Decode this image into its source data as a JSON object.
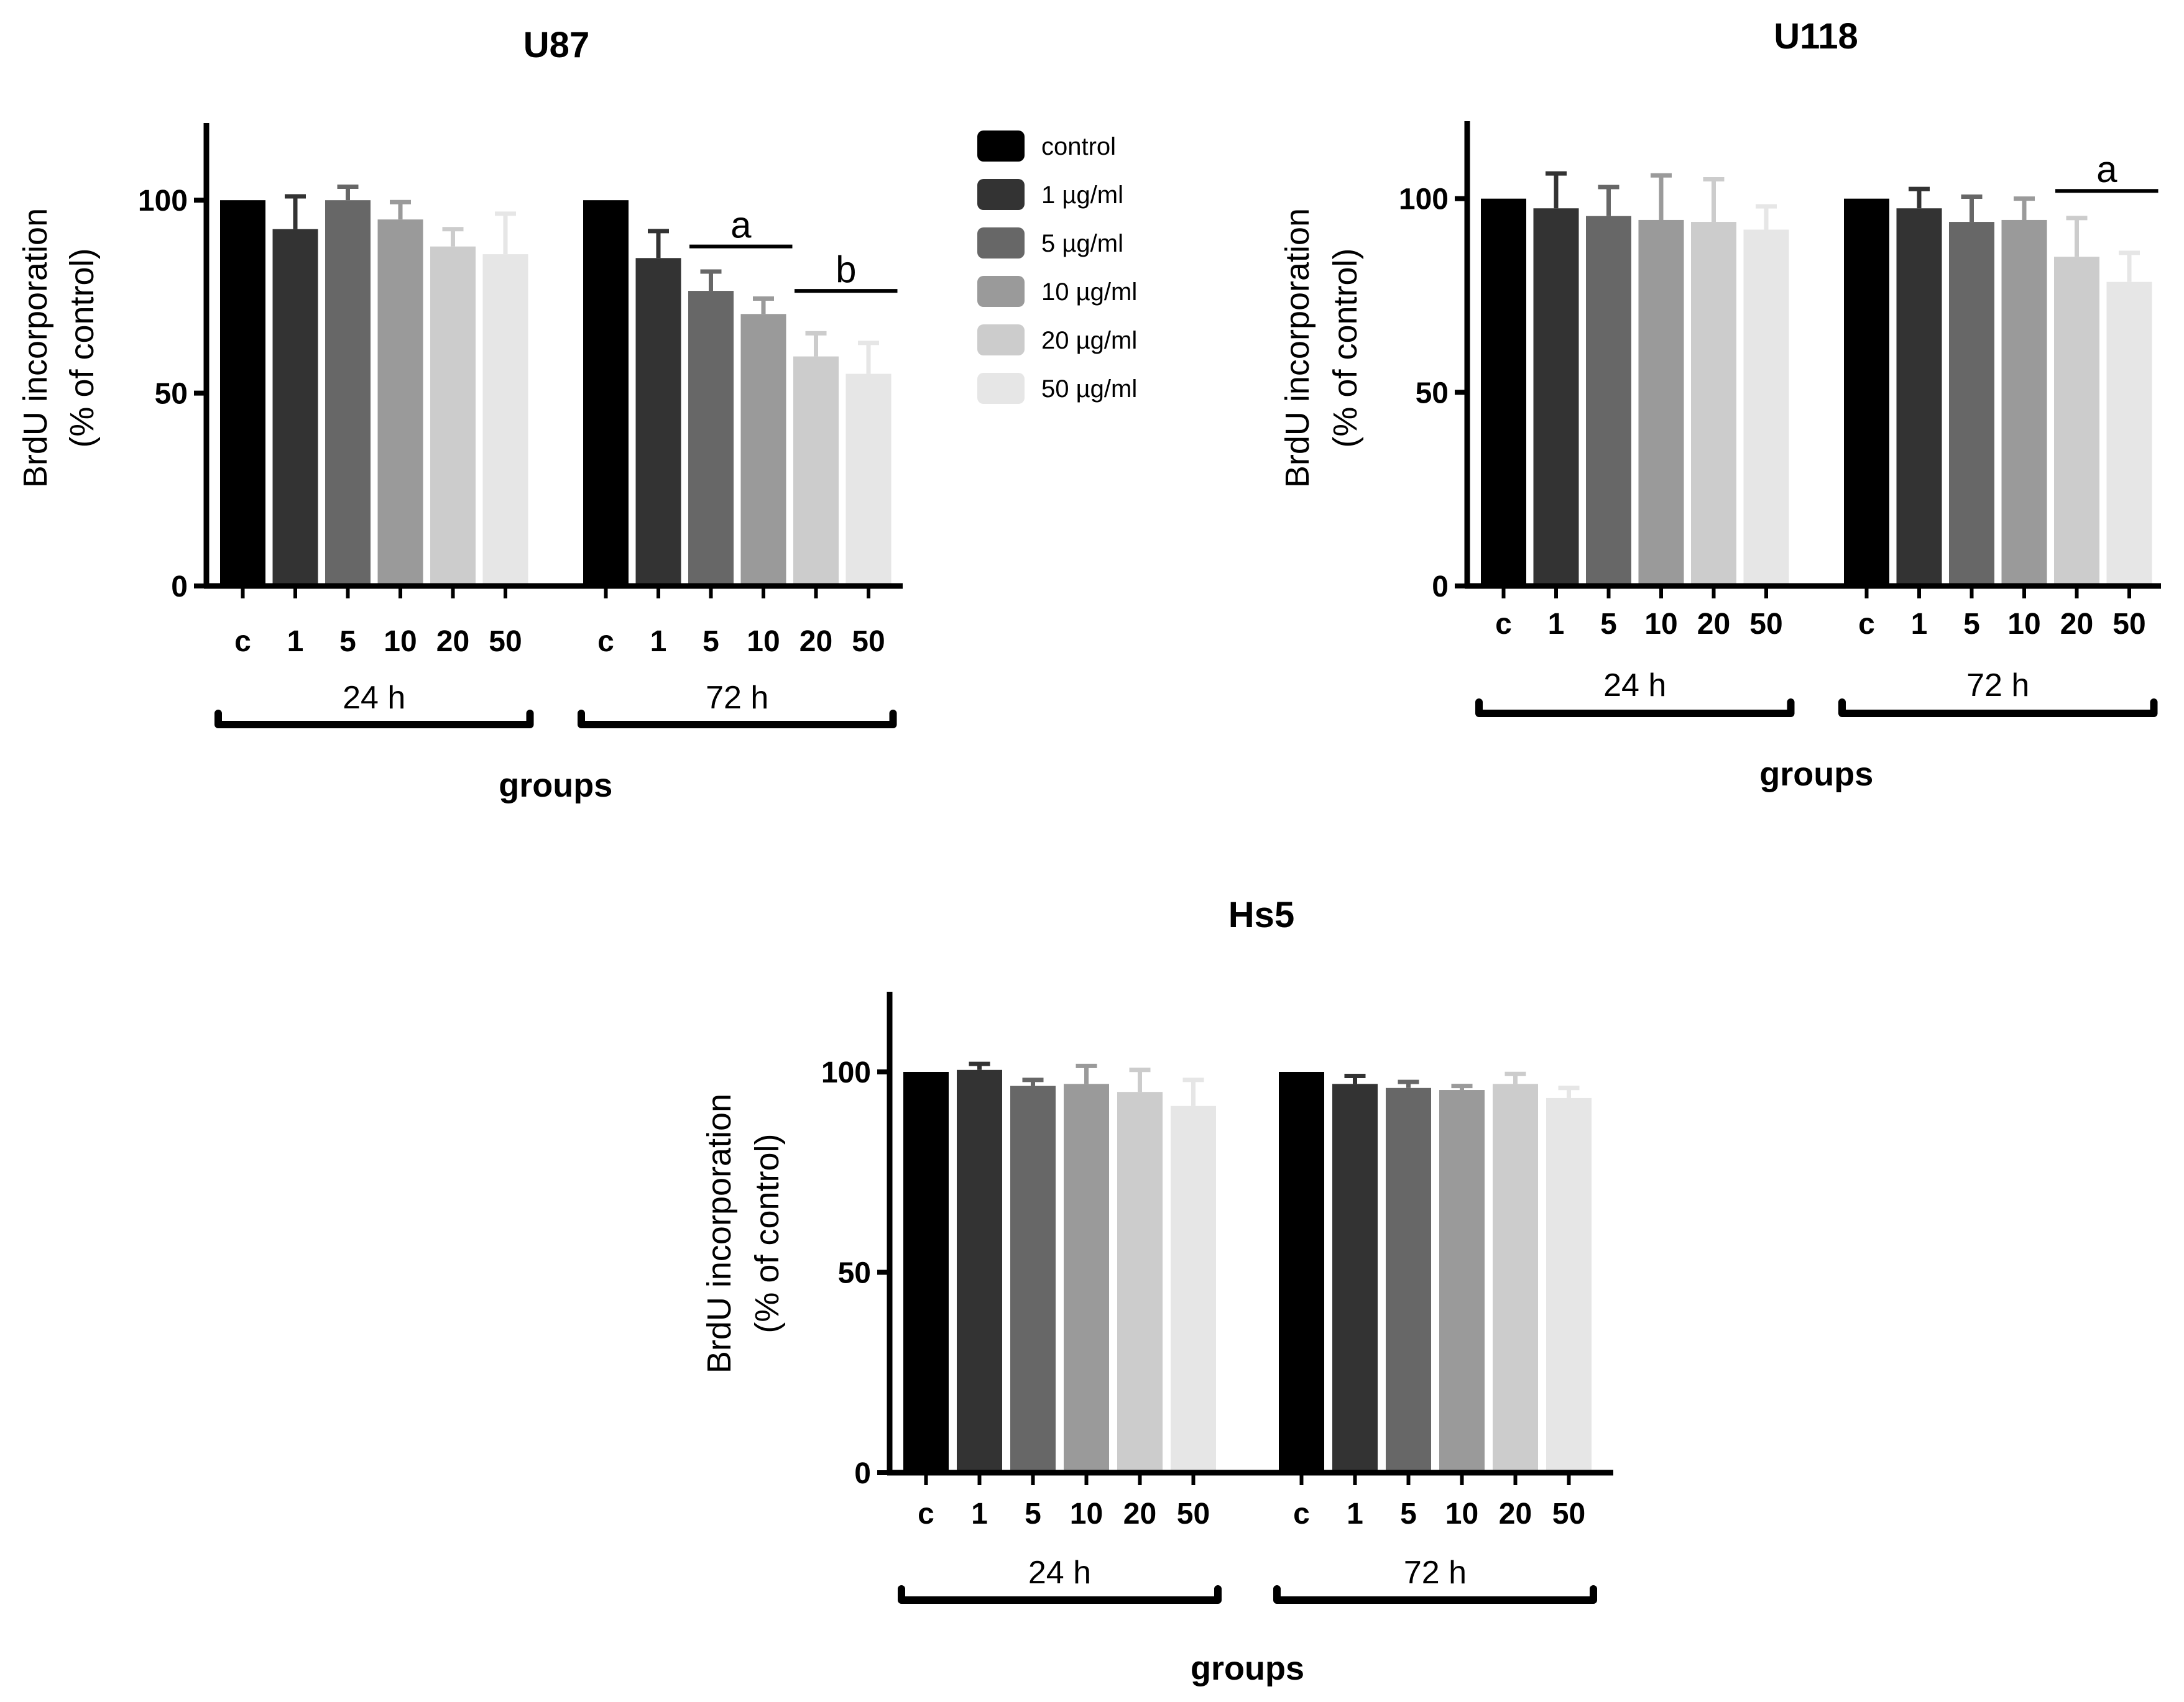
{
  "legend": {
    "items": [
      {
        "label": "control",
        "color": "#000000"
      },
      {
        "label": "1 µg/ml",
        "color": "#333333"
      },
      {
        "label": "5 µg/ml",
        "color": "#676767"
      },
      {
        "label": "10 µg/ml",
        "color": "#9a9a9a"
      },
      {
        "label": "20 µg/ml",
        "color": "#cccccc"
      },
      {
        "label": "50 µg/ml",
        "color": "#e6e6e6"
      }
    ]
  },
  "chart_data": [
    {
      "type": "bar",
      "title": "U87",
      "ylabel_line1": "BrdU incorporation",
      "ylabel_line2": "(% of control)",
      "xlabel": "groups",
      "ylim": [
        0,
        120
      ],
      "yticks": [
        "0",
        "50",
        "100"
      ],
      "categories": [
        "c",
        "1",
        "5",
        "10",
        "20",
        "50"
      ],
      "groups": [
        {
          "name": "24 h",
          "values": [
            100,
            92.5,
            100,
            95,
            88,
            86
          ],
          "errors": [
            0,
            8.5,
            3.5,
            4.5,
            4.5,
            10.5
          ]
        },
        {
          "name": "72 h",
          "values": [
            100,
            85,
            76.5,
            70.5,
            59.5,
            55
          ],
          "errors": [
            0,
            7,
            5,
            4,
            6,
            8
          ]
        }
      ],
      "annotations": [
        {
          "text": "a",
          "group": 1,
          "from": 2,
          "to": 3,
          "y": 88
        },
        {
          "text": "b",
          "group": 1,
          "from": 4,
          "to": 5,
          "y": 76.5
        }
      ]
    },
    {
      "type": "bar",
      "title": "U118",
      "ylabel_line1": "BrdU incorporation",
      "ylabel_line2": "(% of control)",
      "xlabel": "groups",
      "ylim": [
        0,
        120
      ],
      "yticks": [
        "0",
        "50",
        "100"
      ],
      "categories": [
        "c",
        "1",
        "5",
        "10",
        "20",
        "50"
      ],
      "groups": [
        {
          "name": "24 h",
          "values": [
            100,
            97.5,
            95.5,
            94.5,
            94,
            92
          ],
          "errors": [
            0,
            9,
            7.5,
            11.5,
            11,
            6
          ]
        },
        {
          "name": "72 h",
          "values": [
            100,
            97.5,
            94,
            94.5,
            85,
            78.5
          ],
          "errors": [
            0,
            5,
            6.5,
            5.5,
            10,
            7.5
          ]
        }
      ],
      "annotations": [
        {
          "text": "a",
          "group": 1,
          "from": 4,
          "to": 5,
          "y": 102
        }
      ]
    },
    {
      "type": "bar",
      "title": "Hs5",
      "ylabel_line1": "BrdU incorporation",
      "ylabel_line2": "(% of control)",
      "xlabel": "groups",
      "ylim": [
        0,
        120
      ],
      "yticks": [
        "0",
        "50",
        "100"
      ],
      "categories": [
        "c",
        "1",
        "5",
        "10",
        "20",
        "50"
      ],
      "groups": [
        {
          "name": "24 h",
          "values": [
            100,
            100.5,
            96.5,
            97,
            95,
            91.5
          ],
          "errors": [
            0,
            1.5,
            1.5,
            4.5,
            5.5,
            6.5
          ]
        },
        {
          "name": "72 h",
          "values": [
            100,
            97,
            96,
            95.5,
            97,
            93.5
          ],
          "errors": [
            0,
            2,
            1.5,
            1,
            2.5,
            2.5
          ]
        }
      ],
      "annotations": []
    }
  ]
}
